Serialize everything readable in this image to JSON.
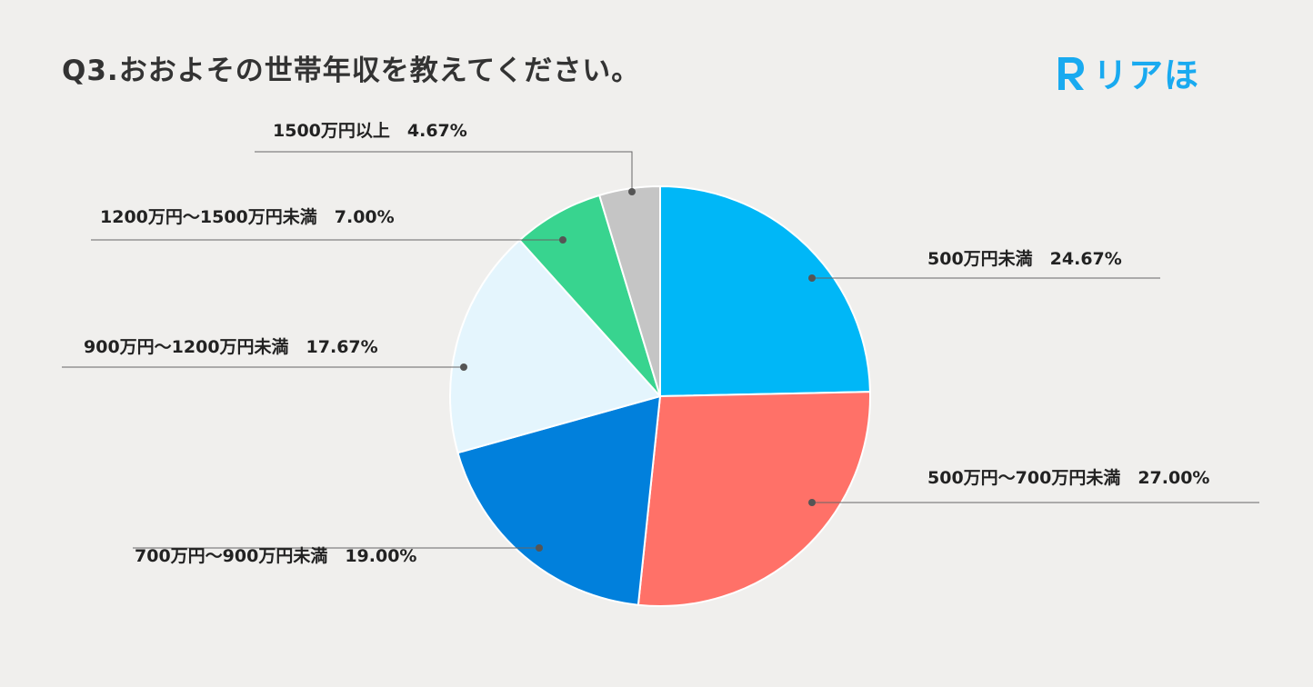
{
  "page": {
    "title": "Q3.おおよその世帯年収を教えてください。",
    "logo_text": "リアほ",
    "logo_letter": "R",
    "logo_color": "#19aaf0",
    "background": "#f0efed"
  },
  "chart_data": {
    "type": "pie",
    "title": "Q3.おおよその世帯年収を教えてください。",
    "slices": [
      {
        "label": "500万円未満",
        "display": "24.67%",
        "value": 24.67,
        "color": "#00b7f7"
      },
      {
        "label": "500万円〜700万円未満",
        "display": "27.00%",
        "value": 27.0,
        "color": "#ff7168"
      },
      {
        "label": "700万円〜900万円未満",
        "display": "19.00%",
        "value": 19.0,
        "color": "#0180dc"
      },
      {
        "label": "900万円〜1200万円未満",
        "display": "17.67%",
        "value": 17.67,
        "color": "#e4f5fd"
      },
      {
        "label": "1200万円〜1500万円未満",
        "display": "7.00%",
        "value": 7.0,
        "color": "#38d48f"
      },
      {
        "label": "1500万円以上",
        "display": "4.67%",
        "value": 4.67,
        "color": "#c5c5c5"
      }
    ],
    "start_angle_deg": 0,
    "direction": "clockwise",
    "legend": "none"
  }
}
